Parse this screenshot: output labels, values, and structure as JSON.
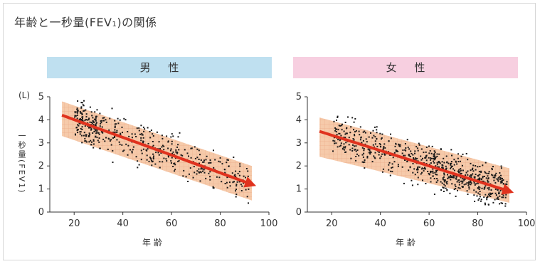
{
  "page": {
    "title_main": "年齢と一秒量(FEV",
    "title_sub": "1",
    "title_end": ")の関係"
  },
  "colors": {
    "male_header_bg": "#bfe0f0",
    "female_header_bg": "#f7cfe0",
    "band_fill": "#f6c7a6",
    "band_grid": "#e8a07a",
    "point": "#1a1a1a",
    "trend_arrow": "#e0321e",
    "axis": "#333333"
  },
  "chart_data": [
    {
      "type": "scatter",
      "title": "男 性",
      "xlabel": "年 齢",
      "ylabel": "一秒量(FEV1)",
      "y_unit": "(L)",
      "xlim": [
        10,
        100
      ],
      "ylim": [
        0,
        5
      ],
      "x_ticks": [
        20,
        40,
        60,
        80,
        100
      ],
      "y_ticks": [
        0,
        1,
        2,
        3,
        4,
        5
      ],
      "trend": {
        "x": [
          15,
          93
        ],
        "y": [
          4.2,
          1.2
        ]
      },
      "band": {
        "x": [
          15,
          93
        ],
        "upper": [
          4.8,
          2.0
        ],
        "lower": [
          3.3,
          0.5
        ]
      },
      "grid": false
    },
    {
      "type": "scatter",
      "title": "女 性",
      "xlabel": "年 齢",
      "ylabel": "一秒量(FEV1)",
      "y_unit": "",
      "xlim": [
        10,
        100
      ],
      "ylim": [
        0,
        5
      ],
      "x_ticks": [
        20,
        40,
        60,
        80,
        100
      ],
      "y_ticks": [
        0,
        1,
        2,
        3,
        4,
        5
      ],
      "trend": {
        "x": [
          15,
          93
        ],
        "y": [
          3.5,
          0.9
        ]
      },
      "band": {
        "x": [
          15,
          93
        ],
        "upper": [
          4.1,
          1.9
        ],
        "lower": [
          2.4,
          0.4
        ]
      },
      "grid": false
    }
  ]
}
